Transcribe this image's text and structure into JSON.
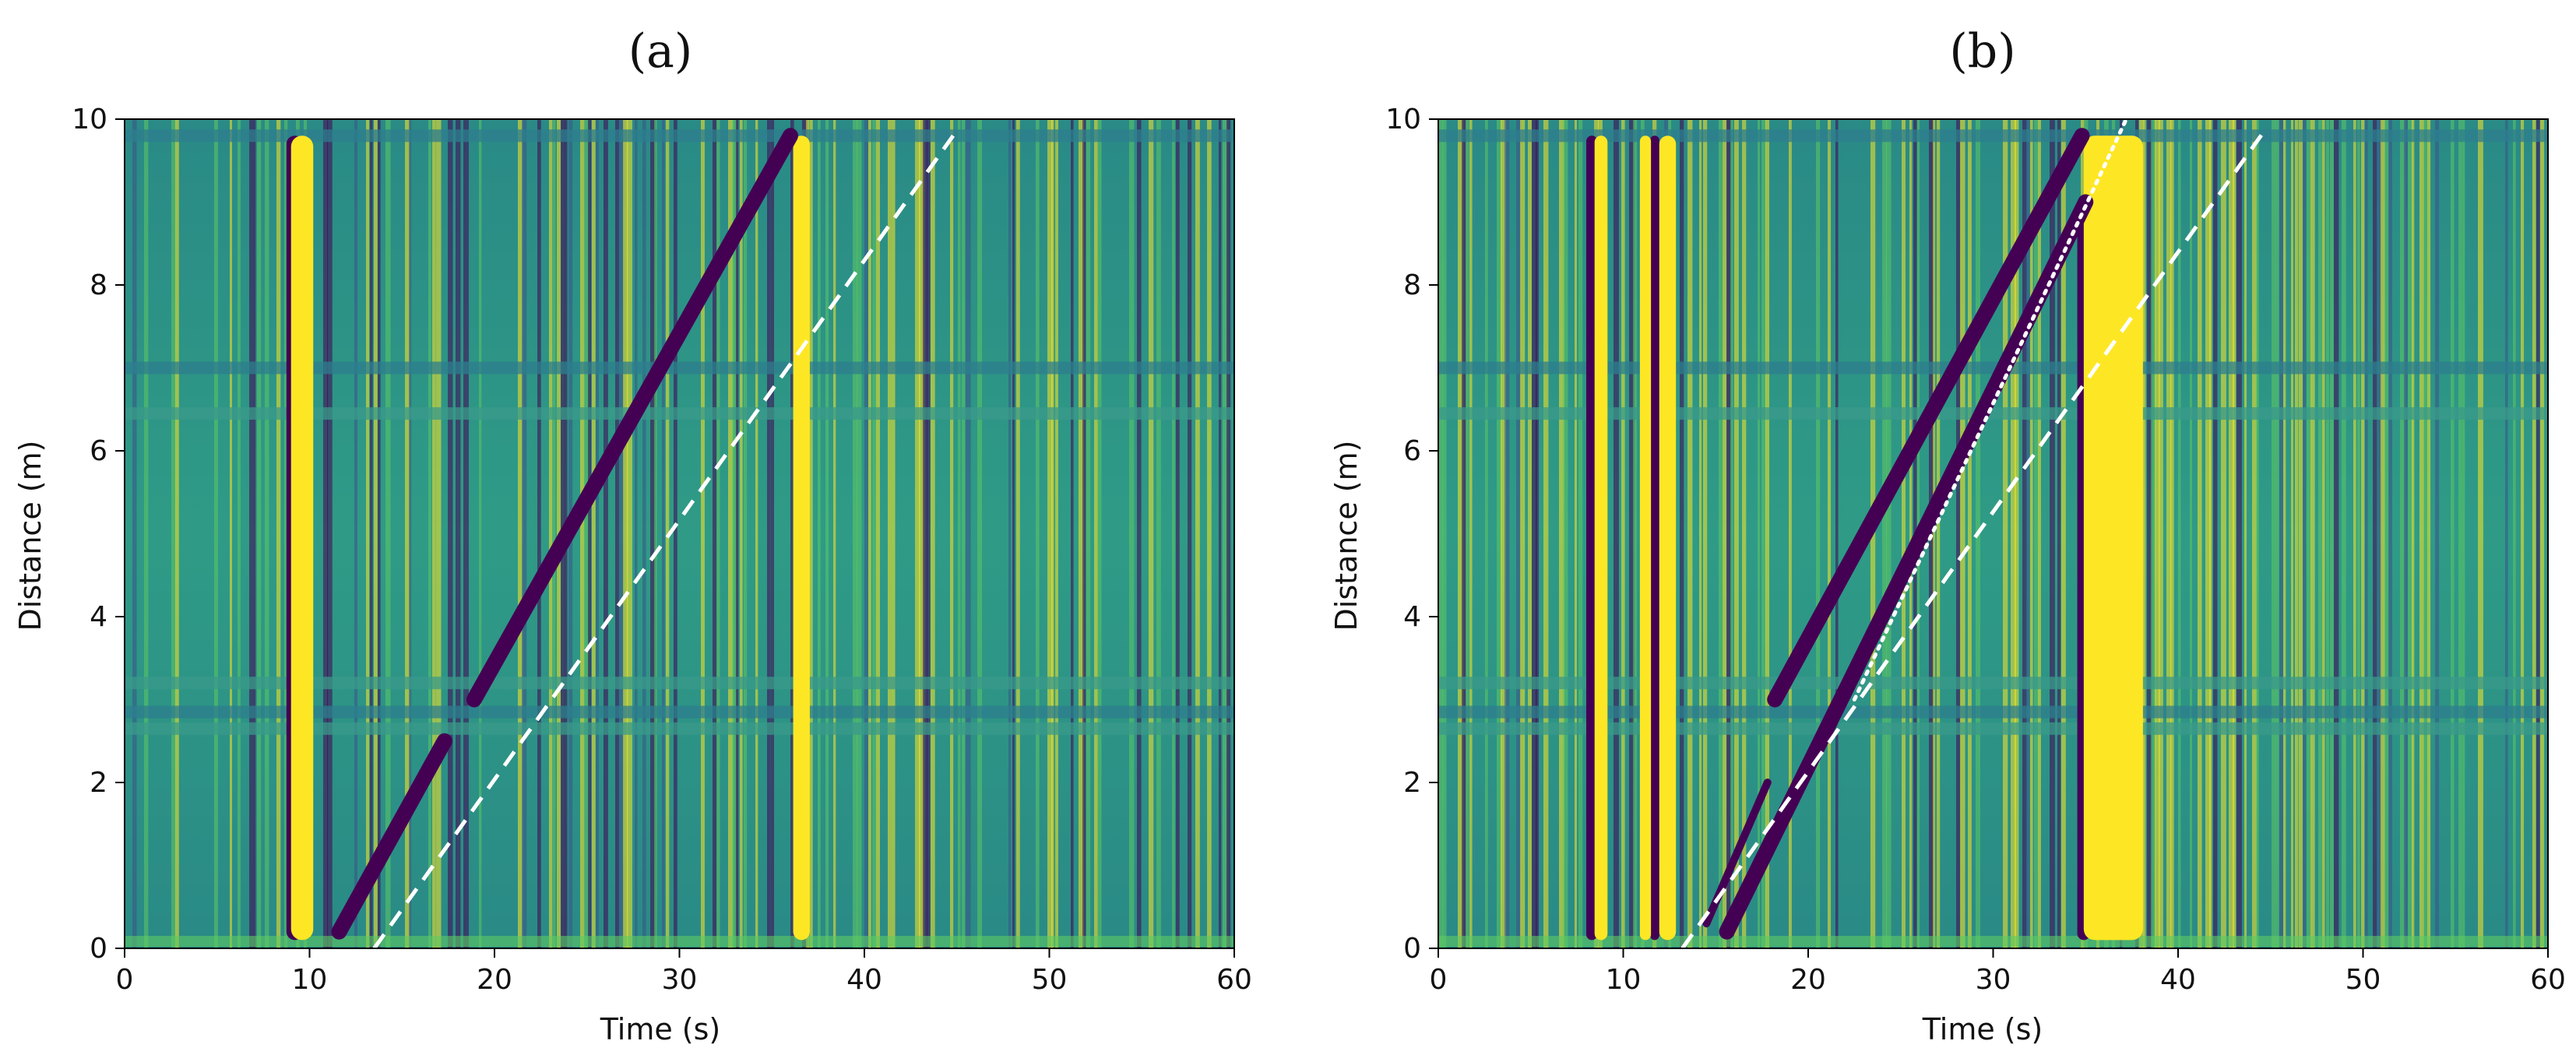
{
  "colors": {
    "viridis_low": "#440154",
    "viridis_mid": "#21918c",
    "viridis_high": "#fde725",
    "annotation_line": "#ffffff"
  },
  "chart_data": [
    {
      "type": "heatmap",
      "title": "(a)",
      "xlabel": "Time (s)",
      "ylabel": "Distance (m)",
      "xlim": [
        0,
        60
      ],
      "ylim": [
        0,
        10
      ],
      "xticks": [
        0,
        10,
        20,
        30,
        40,
        50,
        60
      ],
      "yticks": [
        0,
        2,
        4,
        6,
        8,
        10
      ],
      "colormap": "viridis",
      "grid": false,
      "horizontal_bands_m": [
        2.65,
        2.85,
        3.2,
        7.0,
        6.45,
        9.8
      ],
      "bright_vertical_bands_s": [
        {
          "t": 9.6,
          "width": 1.2,
          "d0": 0.1,
          "d1": 9.8
        },
        {
          "t": 36.6,
          "width": 0.9,
          "d0": 0.1,
          "d1": 9.8
        }
      ],
      "dark_vertical_bands_s": [
        {
          "t": 9.2,
          "width": 0.9,
          "d0": 0.1,
          "d1": 9.8
        }
      ],
      "traces": [
        {
          "name": "",
          "style": "dark-thick",
          "x": [
            11.6,
            17.3
          ],
          "y": [
            0.2,
            2.5
          ]
        },
        {
          "name": "",
          "style": "dark-thick",
          "x": [
            18.9,
            36.0
          ],
          "y": [
            3.0,
            9.8
          ]
        },
        {
          "name": "",
          "style": "white-dashed",
          "x": [
            13.5,
            44.8
          ],
          "y": [
            0.0,
            9.8
          ]
        }
      ]
    },
    {
      "type": "heatmap",
      "title": "(b)",
      "xlabel": "Time (s)",
      "ylabel": "Distance (m)",
      "xlim": [
        0,
        60
      ],
      "ylim": [
        0,
        10
      ],
      "xticks": [
        0,
        10,
        20,
        30,
        40,
        50,
        60
      ],
      "yticks": [
        0,
        2,
        4,
        6,
        8,
        10
      ],
      "colormap": "viridis",
      "grid": false,
      "horizontal_bands_m": [
        2.65,
        2.85,
        3.2,
        7.0,
        6.45,
        9.8
      ],
      "bright_vertical_bands_s": [
        {
          "t": 8.8,
          "width": 0.7,
          "d0": 0.1,
          "d1": 9.8
        },
        {
          "t": 11.2,
          "width": 0.6,
          "d0": 0.1,
          "d1": 9.8
        },
        {
          "t": 12.4,
          "width": 0.9,
          "d0": 0.1,
          "d1": 9.8
        },
        {
          "t": 36.5,
          "width": 3.2,
          "d0": 0.1,
          "d1": 9.8
        }
      ],
      "dark_vertical_bands_s": [
        {
          "t": 8.3,
          "width": 0.6,
          "d0": 0.1,
          "d1": 9.8
        },
        {
          "t": 11.7,
          "width": 0.5,
          "d0": 0.1,
          "d1": 9.8
        },
        {
          "t": 34.9,
          "width": 0.7,
          "d0": 0.1,
          "d1": 9.0
        }
      ],
      "traces": [
        {
          "name": "",
          "style": "dark-thick",
          "x": [
            15.6,
            35.0
          ],
          "y": [
            0.2,
            9.0
          ]
        },
        {
          "name": "",
          "style": "dark-thick",
          "x": [
            18.2,
            34.8
          ],
          "y": [
            3.0,
            9.8
          ]
        },
        {
          "name": "",
          "style": "dark-thin",
          "x": [
            14.5,
            17.8
          ],
          "y": [
            0.3,
            2.0
          ]
        },
        {
          "name": "",
          "style": "white-dashed",
          "x": [
            13.2,
            44.8
          ],
          "y": [
            0.0,
            9.9
          ]
        },
        {
          "name": "",
          "style": "white-dotted",
          "x": [
            22.5,
            37.2
          ],
          "y": [
            3.0,
            10.0
          ]
        }
      ]
    }
  ]
}
